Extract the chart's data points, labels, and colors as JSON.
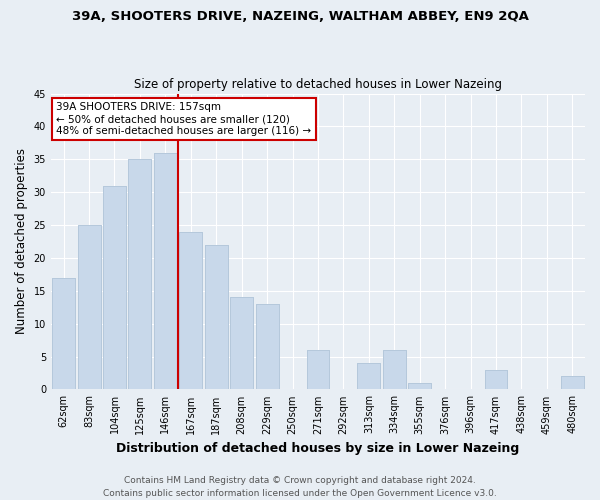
{
  "title": "39A, SHOOTERS DRIVE, NAZEING, WALTHAM ABBEY, EN9 2QA",
  "subtitle": "Size of property relative to detached houses in Lower Nazeing",
  "xlabel": "Distribution of detached houses by size in Lower Nazeing",
  "ylabel": "Number of detached properties",
  "footer_line1": "Contains HM Land Registry data © Crown copyright and database right 2024.",
  "footer_line2": "Contains public sector information licensed under the Open Government Licence v3.0.",
  "categories": [
    "62sqm",
    "83sqm",
    "104sqm",
    "125sqm",
    "146sqm",
    "167sqm",
    "187sqm",
    "208sqm",
    "229sqm",
    "250sqm",
    "271sqm",
    "292sqm",
    "313sqm",
    "334sqm",
    "355sqm",
    "376sqm",
    "396sqm",
    "417sqm",
    "438sqm",
    "459sqm",
    "480sqm"
  ],
  "values": [
    17,
    25,
    31,
    35,
    36,
    24,
    22,
    14,
    13,
    0,
    6,
    0,
    4,
    6,
    1,
    0,
    0,
    3,
    0,
    0,
    2
  ],
  "bar_color": "#c8d8ea",
  "bar_edge_color": "#b0c4d8",
  "vline_x_index": 4.5,
  "vline_color": "#cc0000",
  "annotation_title": "39A SHOOTERS DRIVE: 157sqm",
  "annotation_line1": "← 50% of detached houses are smaller (120)",
  "annotation_line2": "48% of semi-detached houses are larger (116) →",
  "annotation_box_facecolor": "#ffffff",
  "annotation_box_edgecolor": "#cc0000",
  "ylim": [
    0,
    45
  ],
  "yticks": [
    0,
    5,
    10,
    15,
    20,
    25,
    30,
    35,
    40,
    45
  ],
  "background_color": "#e8eef4",
  "grid_color": "#ffffff",
  "title_fontsize": 9.5,
  "subtitle_fontsize": 8.5,
  "ylabel_fontsize": 8.5,
  "xlabel_fontsize": 9,
  "tick_fontsize": 7,
  "annotation_fontsize": 7.5,
  "footer_fontsize": 6.5
}
